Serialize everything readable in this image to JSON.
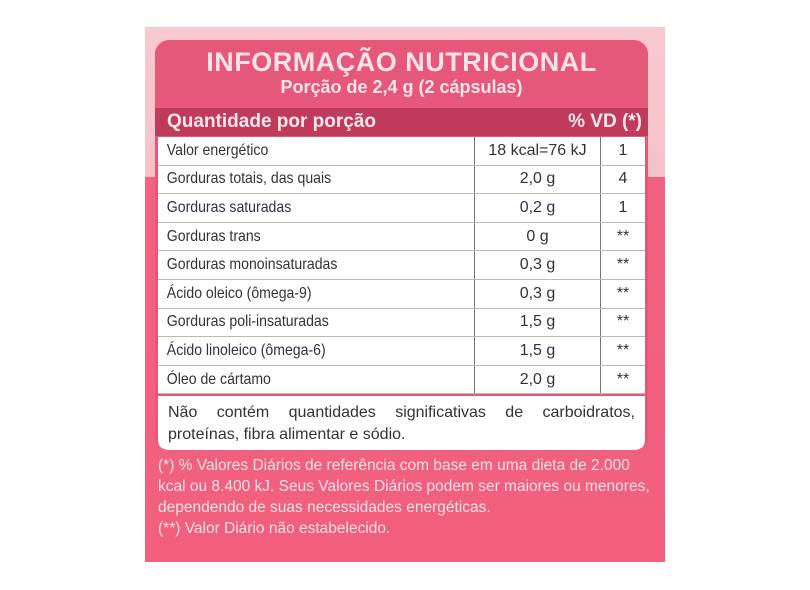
{
  "title": "INFORMAÇÃO NUTRICIONAL",
  "serving": "Porção de 2,4 g (2 cápsulas)",
  "header": {
    "left": "Quantidade por porção",
    "right": "% VD (*)"
  },
  "rows": [
    {
      "name": "Valor energético",
      "value": "18 kcal=76 kJ",
      "vd": "1"
    },
    {
      "name": "Gorduras totais, das quais",
      "value": "2,0 g",
      "vd": "4"
    },
    {
      "name": "Gorduras saturadas",
      "value": "0,2 g",
      "vd": "1"
    },
    {
      "name": "Gorduras trans",
      "value": "0 g",
      "vd": "**"
    },
    {
      "name": "Gorduras monoinsaturadas",
      "value": "0,3 g",
      "vd": "**"
    },
    {
      "name": "Ácido oleico (ômega-9)",
      "value": "0,3 g",
      "vd": "**"
    },
    {
      "name": "Gorduras poli-insaturadas",
      "value": "1,5 g",
      "vd": "**"
    },
    {
      "name": "Ácido linoleico (ômega-6)",
      "value": "1,5 g",
      "vd": "**"
    },
    {
      "name": "Óleo de cártamo",
      "value": "2,0 g",
      "vd": "**"
    }
  ],
  "note": "Não contém quantidades significativas de carboidratos, proteínas, fibra alimentar e sódio.",
  "footnotes": [
    "(*) % Valores Diários de referência com base em uma dieta de 2.000 kcal ou 8.400 kJ. Seus Valores Diários podem ser maiores ou menores, dependendo de suas necessidades energéticas.",
    "(**) Valor Diário não estabelecido."
  ],
  "colors": {
    "brand_pink": "#f15f7d",
    "header_band": "#c03a5c",
    "title_band": "#e6587a"
  }
}
